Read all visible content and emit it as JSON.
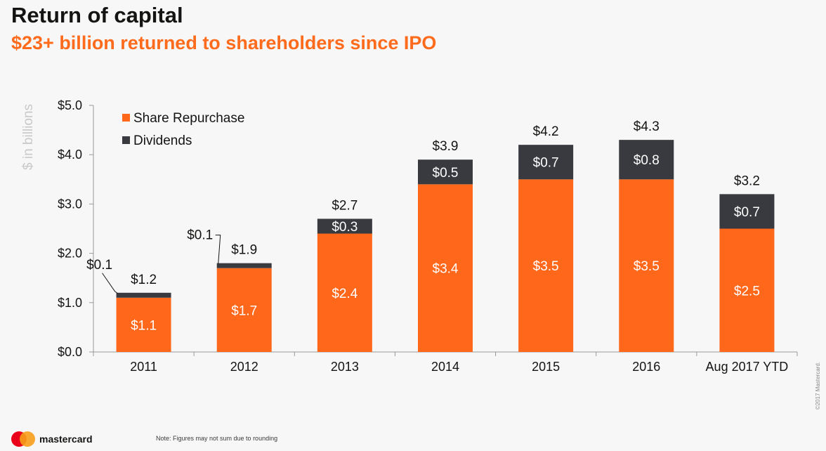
{
  "header": {
    "title": "Return of capital",
    "subtitle": "$23+ billion returned to shareholders since IPO"
  },
  "chart_data": {
    "type": "bar",
    "stacked": true,
    "categories": [
      "2011",
      "2012",
      "2013",
      "2014",
      "2015",
      "2016",
      "Aug 2017 YTD"
    ],
    "series": [
      {
        "name": "Share Repurchase",
        "color": "#ff671b",
        "values": [
          1.1,
          1.7,
          2.4,
          3.4,
          3.5,
          3.5,
          2.5
        ],
        "labels": [
          "$1.1",
          "$1.7",
          "$2.4",
          "$3.4",
          "$3.5",
          "$3.5",
          "$2.5"
        ]
      },
      {
        "name": "Dividends",
        "color": "#383a3f",
        "values": [
          0.1,
          0.1,
          0.3,
          0.5,
          0.7,
          0.8,
          0.7
        ],
        "labels": [
          "$0.1",
          "$0.1",
          "$0.3",
          "$0.5",
          "$0.7",
          "$0.8",
          "$0.7"
        ]
      }
    ],
    "totals": [
      1.2,
      1.9,
      2.7,
      3.9,
      4.2,
      4.3,
      3.2
    ],
    "total_labels": [
      "$1.2",
      "$1.9",
      "$2.7",
      "$3.9",
      "$4.2",
      "$4.3",
      "$3.2"
    ],
    "ylabel": "$ in billions",
    "ylim": [
      0,
      5
    ],
    "yticks": [
      0,
      1,
      2,
      3,
      4,
      5
    ],
    "ytick_labels": [
      "$0.0",
      "$1.0",
      "$2.0",
      "$3.0",
      "$4.0",
      "$5.0"
    ],
    "grid": false,
    "legend": "top-left"
  },
  "footer": {
    "note": "Note: Figures may not sum due to rounding",
    "brand": "mastercard",
    "copyright": "©2017 Mastercard."
  }
}
